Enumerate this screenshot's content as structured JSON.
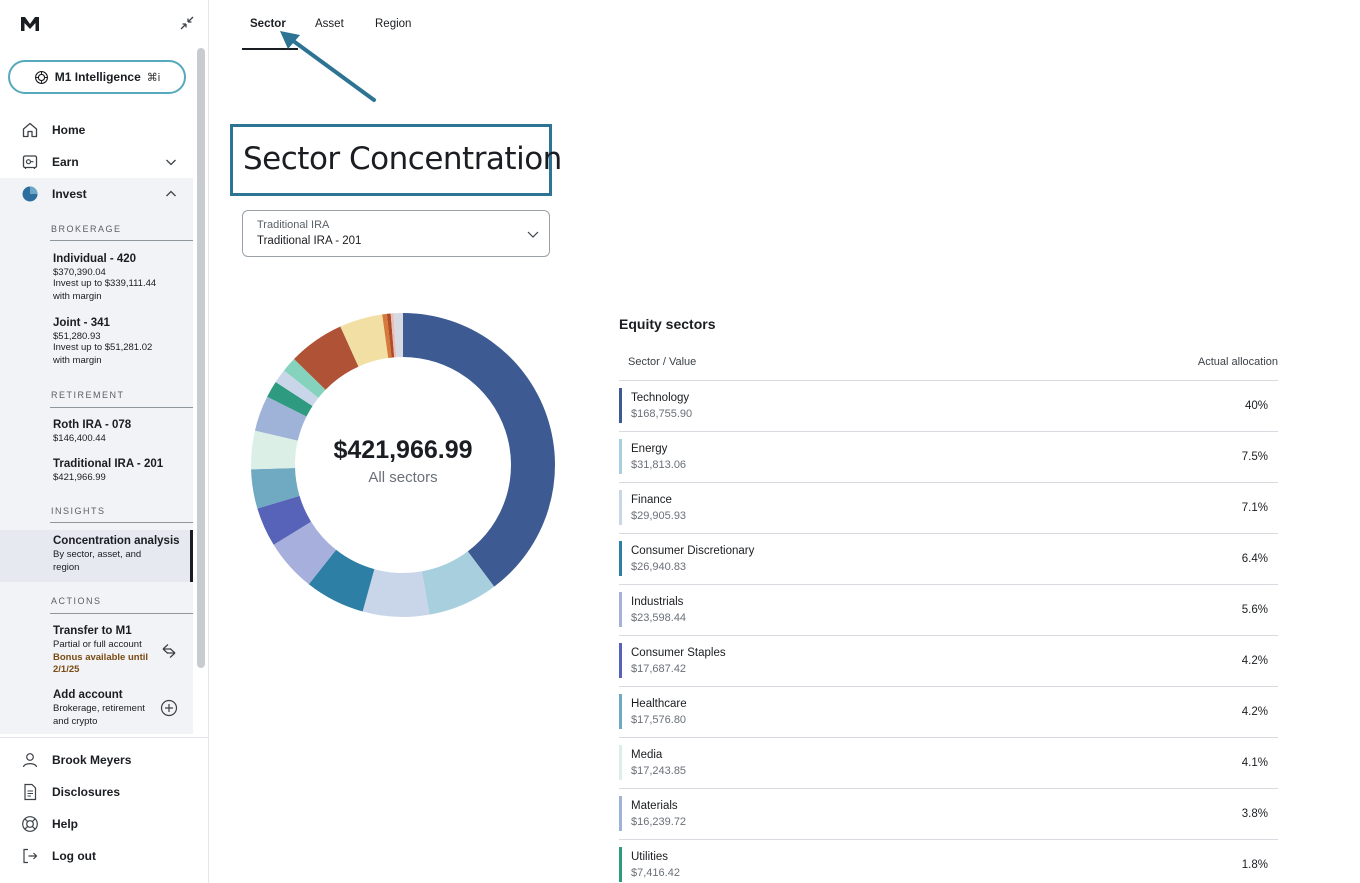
{
  "sidebar": {
    "intelligence_label": "M1 Intelligence",
    "intelligence_shortcut": "⌘i",
    "nav": [
      {
        "label": "Home",
        "icon": "home-icon"
      },
      {
        "label": "Earn",
        "icon": "safe-icon"
      },
      {
        "label": "Invest",
        "icon": "pie-chart-icon"
      }
    ],
    "sections": {
      "brokerage": "BROKERAGE",
      "retirement": "RETIREMENT",
      "insights": "INSIGHTS",
      "actions": "ACTIONS"
    },
    "brokerage_accounts": [
      {
        "name": "Individual - 420",
        "value": "$370,390.04",
        "sub1": "Invest up to $339,111.44",
        "sub2": "with margin"
      },
      {
        "name": "Joint - 341",
        "value": "$51,280.93",
        "sub1": "Invest up to $51,281.02",
        "sub2": "with margin"
      }
    ],
    "retirement_accounts": [
      {
        "name": "Roth IRA - 078",
        "value": "$146,400.44"
      },
      {
        "name": "Traditional IRA - 201",
        "value": "$421,966.99"
      }
    ],
    "insights": {
      "name": "Concentration analysis",
      "sub1": "By sector, asset, and",
      "sub2": "region"
    },
    "actions": [
      {
        "name": "Transfer to M1",
        "sub1": "Partial or full account",
        "bonus1": "Bonus available until",
        "bonus2": "2/1/25",
        "icon": "transfer-arrows-icon"
      },
      {
        "name": "Add account",
        "sub1": "Brokerage, retirement",
        "sub2": "and crypto",
        "icon": "plus-circle-icon"
      }
    ],
    "bottom_nav": [
      {
        "label": "Brook Meyers",
        "icon": "user-icon"
      },
      {
        "label": "Disclosures",
        "icon": "document-icon"
      },
      {
        "label": "Help",
        "icon": "lifebuoy-icon"
      },
      {
        "label": "Log out",
        "icon": "logout-icon"
      }
    ]
  },
  "tabs": [
    "Sector",
    "Asset",
    "Region"
  ],
  "active_tab": "Sector",
  "page_title": "Sector Concentration",
  "account_select": {
    "label": "Traditional IRA",
    "value": "Traditional IRA - 201"
  },
  "donut": {
    "total": "$421,966.99",
    "caption": "All sectors"
  },
  "equity": {
    "title": "Equity sectors",
    "col_left": "Sector / Value",
    "col_right": "Actual allocation",
    "rows": [
      {
        "name": "Technology",
        "value": "$168,755.90",
        "pct": "40%",
        "color": "#3d5a92"
      },
      {
        "name": "Energy",
        "value": "$31,813.06",
        "pct": "7.5%",
        "color": "#a8cfdd"
      },
      {
        "name": "Finance",
        "value": "$29,905.93",
        "pct": "7.1%",
        "color": "#c9d6ea"
      },
      {
        "name": "Consumer Discretionary",
        "value": "$26,940.83",
        "pct": "6.4%",
        "color": "#2e7fa6"
      },
      {
        "name": "Industrials",
        "value": "$23,598.44",
        "pct": "5.6%",
        "color": "#a7b0dc"
      },
      {
        "name": "Consumer Staples",
        "value": "$17,687.42",
        "pct": "4.2%",
        "color": "#5663b8"
      },
      {
        "name": "Healthcare",
        "value": "$17,576.80",
        "pct": "4.2%",
        "color": "#6fa9c2"
      },
      {
        "name": "Media",
        "value": "$17,243.85",
        "pct": "4.1%",
        "color": "#dcefe7"
      },
      {
        "name": "Materials",
        "value": "$16,239.72",
        "pct": "3.8%",
        "color": "#9fb3d8"
      },
      {
        "name": "Utilities",
        "value": "$7,416.42",
        "pct": "1.8%",
        "color": "#2e9a7f"
      }
    ]
  },
  "donut_segments": [
    {
      "pct": 40.0,
      "color": "#3d5a92"
    },
    {
      "pct": 7.5,
      "color": "#a8cfdd"
    },
    {
      "pct": 7.1,
      "color": "#c9d6ea"
    },
    {
      "pct": 6.4,
      "color": "#2e7fa6"
    },
    {
      "pct": 5.6,
      "color": "#a7b0dc"
    },
    {
      "pct": 4.2,
      "color": "#5663b8"
    },
    {
      "pct": 4.2,
      "color": "#6fa9c2"
    },
    {
      "pct": 4.1,
      "color": "#dcefe7"
    },
    {
      "pct": 3.8,
      "color": "#9fb3d8"
    },
    {
      "pct": 1.8,
      "color": "#2e9a7f"
    },
    {
      "pct": 1.5,
      "color": "#c9d6ea"
    },
    {
      "pct": 1.6,
      "color": "#86d3bd"
    },
    {
      "pct": 6.0,
      "color": "#b05235"
    },
    {
      "pct": 4.6,
      "color": "#f2dfa3"
    },
    {
      "pct": 0.5,
      "color": "#d57a3a"
    },
    {
      "pct": 0.4,
      "color": "#b04a2a"
    },
    {
      "pct": 0.3,
      "color": "#e7c1b8"
    },
    {
      "pct": 1.0,
      "color": "#d8dae3"
    }
  ]
}
